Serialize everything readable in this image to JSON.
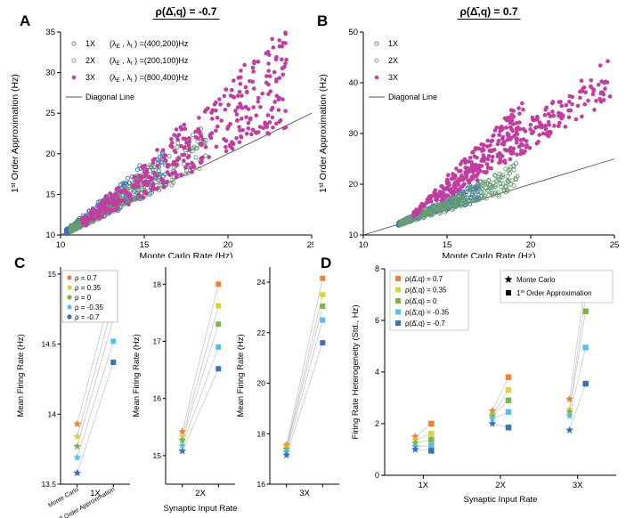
{
  "figure": {
    "panel_labels": {
      "a": "A",
      "b": "B",
      "c": "C",
      "d": "D"
    }
  },
  "chart_data": [
    {
      "id": "A",
      "type": "scatter",
      "title": "ρ(Δ̄,q) = -0.7",
      "xlabel": "Monte Carlo Rate (Hz)",
      "ylabel_segments": [
        {
          "t": "1"
        },
        {
          "t": "st",
          "sup": true
        },
        {
          "t": " Order Approximation (Hz)"
        }
      ],
      "xlim": [
        10,
        25
      ],
      "ylim": [
        10,
        35
      ],
      "xticks": [
        10,
        15,
        20,
        25
      ],
      "yticks": [
        10,
        15,
        20,
        25,
        30,
        35
      ],
      "diagonal": {
        "label": "Diagonal Line",
        "from": [
          10,
          10
        ],
        "to": [
          25,
          25
        ],
        "color": "#555555"
      },
      "legend": [
        {
          "marker": "open-circle",
          "color": "#3b72b5",
          "label": "1X",
          "detail": [
            {
              "t": "(λ"
            },
            {
              "t": "E",
              "sub": true
            },
            {
              "t": " , λ"
            },
            {
              "t": "I",
              "sub": true
            },
            {
              "t": " ) =(400,200)Hz"
            }
          ]
        },
        {
          "marker": "open-circle",
          "color": "#679d72",
          "label": "2X",
          "detail": [
            {
              "t": "(λ"
            },
            {
              "t": "E",
              "sub": true
            },
            {
              "t": " , λ"
            },
            {
              "t": "I",
              "sub": true
            },
            {
              "t": " ) =(200,100)Hz"
            }
          ]
        },
        {
          "marker": "filled-circle",
          "color": "#c23da0",
          "label": "3X",
          "detail": [
            {
              "t": "(λ"
            },
            {
              "t": "E",
              "sub": true
            },
            {
              "t": " , λ"
            },
            {
              "t": "I",
              "sub": true
            },
            {
              "t": " ) =(800,400)Hz"
            }
          ]
        },
        {
          "marker": "line",
          "color": "#555555",
          "label": "Diagonal Line"
        }
      ],
      "series": [
        {
          "name": "1X",
          "marker": "open-circle",
          "color": "#3b72b5",
          "clusters": [
            {
              "seed": 101,
              "count": 330,
              "x0": 10.2,
              "y0": 10.2,
              "xmin": 10.35,
              "xmax": 16.4,
              "xpow": 2.0,
              "kmin": 0.92,
              "kmax": 1.8,
              "jitter": 0.3
            }
          ]
        },
        {
          "name": "2X",
          "marker": "open-circle",
          "color": "#679d72",
          "clusters": [
            {
              "seed": 202,
              "count": 310,
              "x0": 10.4,
              "y0": 10.4,
              "xmin": 10.6,
              "xmax": 18.7,
              "xpow": 1.8,
              "kmin": 0.92,
              "kmax": 1.62,
              "jitter": 0.3
            }
          ]
        },
        {
          "name": "3X",
          "marker": "filled-circle",
          "color": "#c23da0",
          "clusters": [
            {
              "seed": 303,
              "count": 400,
              "x0": 10.8,
              "y0": 10.8,
              "xmin": 11.3,
              "xmax": 23.5,
              "xpow": 1.3,
              "kmin": 0.98,
              "kmax": 1.95,
              "jitter": 0.5
            }
          ]
        }
      ]
    },
    {
      "id": "B",
      "type": "scatter",
      "title": "ρ(Δ̄,q) = 0.7",
      "xlabel": "Monte Carlo Rate (Hz)",
      "ylabel_segments": [
        {
          "t": "1"
        },
        {
          "t": "st",
          "sup": true
        },
        {
          "t": " Order Approximation (Hz)"
        }
      ],
      "xlim": [
        10,
        25
      ],
      "ylim": [
        10,
        50
      ],
      "xticks": [
        10,
        15,
        20,
        25
      ],
      "yticks": [
        10,
        20,
        30,
        40,
        50
      ],
      "diagonal": {
        "label": "Diagonal Line",
        "from": [
          10,
          10
        ],
        "to": [
          25,
          25
        ],
        "color": "#555555"
      },
      "legend": [
        {
          "marker": "open-circle",
          "color": "#3b72b5",
          "label": "1X"
        },
        {
          "marker": "open-circle",
          "color": "#679d72",
          "label": "2X"
        },
        {
          "marker": "filled-circle",
          "color": "#c23da0",
          "label": "3X"
        },
        {
          "marker": "line",
          "color": "#555555",
          "label": "Diagonal Line"
        }
      ],
      "series": [
        {
          "name": "1X",
          "marker": "open-circle",
          "color": "#3b72b5",
          "clusters": [
            {
              "seed": 404,
              "count": 300,
              "x0": 12.0,
              "y0": 12.0,
              "xmin": 12.1,
              "xmax": 17.0,
              "xpow": 1.9,
              "kmin": 0.95,
              "kmax": 1.75,
              "jitter": 0.3
            }
          ]
        },
        {
          "name": "2X",
          "marker": "open-circle",
          "color": "#679d72",
          "clusters": [
            {
              "seed": 505,
              "count": 300,
              "x0": 12.0,
              "y0": 12.0,
              "xmin": 12.2,
              "xmax": 19.3,
              "xpow": 1.7,
              "kmin": 0.95,
              "kmax": 1.7,
              "jitter": 0.35
            }
          ]
        },
        {
          "name": "3X",
          "marker": "filled-circle",
          "color": "#c23da0",
          "clusters": [
            {
              "seed": 606,
              "count": 180,
              "x0": 12.5,
              "y0": 12.5,
              "xmin": 13.0,
              "xmax": 19.6,
              "xpow": 1.2,
              "kmin": 2.6,
              "kmax": 3.45,
              "jitter": 0.5
            },
            {
              "seed": 707,
              "count": 240,
              "x0": 12.3,
              "y0": 12.3,
              "xmin": 14.3,
              "xmax": 24.8,
              "xpow": 1.15,
              "kmin": 1.95,
              "kmax": 2.65,
              "jitter": 0.5
            }
          ]
        }
      ]
    },
    {
      "id": "C",
      "type": "line",
      "ylabel": "Mean Firing Rate (Hz)",
      "xlabel_shared": "Synaptic Input Rate",
      "categories": [
        {
          "label": "Monte Carlo",
          "segments": [
            {
              "t": "Monte Carlo"
            }
          ]
        },
        {
          "label": "1st Order Approximation",
          "segments": [
            {
              "t": "1"
            },
            {
              "t": "st",
              "sup": true
            },
            {
              "t": " Order Approximation"
            }
          ]
        }
      ],
      "rho_legend": [
        {
          "label": "ρ = 0.7",
          "color": "#f08032"
        },
        {
          "label": "ρ = 0.35",
          "color": "#ddd23f"
        },
        {
          "label": "ρ = 0",
          "color": "#7ab648"
        },
        {
          "label": "ρ = -0.35",
          "color": "#55c0e8"
        },
        {
          "label": "ρ = -0.7",
          "color": "#3b72b5"
        }
      ],
      "panels": [
        {
          "xlabel": "1X",
          "ylim": [
            13.5,
            15.05
          ],
          "yticks": [
            13.5,
            14,
            14.5,
            15
          ],
          "mc": [
            13.93,
            13.84,
            13.77,
            13.69,
            13.58
          ],
          "approx": [
            14.93,
            14.8,
            14.68,
            14.52,
            14.37
          ],
          "cat_labels": true,
          "show_legend": true,
          "ylabel_dx": 42
        },
        {
          "xlabel": "2X",
          "ylim": [
            14.5,
            18.3
          ],
          "yticks": [
            15,
            16,
            17,
            18
          ],
          "mc": [
            15.42,
            15.33,
            15.27,
            15.18,
            15.08
          ],
          "approx": [
            18.0,
            17.62,
            17.3,
            16.9,
            16.52
          ],
          "ylabel_dx": 30
        },
        {
          "xlabel": "3X",
          "ylim": [
            16,
            24.6
          ],
          "yticks": [
            16,
            18,
            20,
            22,
            24
          ],
          "mc": [
            17.55,
            17.45,
            17.38,
            17.28,
            17.15
          ],
          "approx": [
            24.15,
            23.5,
            23.05,
            22.5,
            21.6
          ],
          "ylabel_dx": 30
        }
      ]
    },
    {
      "id": "D",
      "type": "scatter",
      "ylabel": "Firing Rate Heterogeneity (Std., Hz)",
      "xlabel": "Synaptic Input Rate",
      "categories": [
        "1X",
        "2X",
        "3X"
      ],
      "ylim": [
        0,
        8
      ],
      "yticks": [
        0,
        2,
        4,
        6,
        8
      ],
      "rho_legend": [
        {
          "label": "ρ(Δ̄,q) = 0.7",
          "color": "#f08032"
        },
        {
          "label": "ρ(Δ̄,q) = 0.35",
          "color": "#ddd23f"
        },
        {
          "label": "ρ(Δ̄,q) = 0",
          "color": "#7ab648"
        },
        {
          "label": "ρ(Δ̄,q) = -0.35",
          "color": "#55c0e8"
        },
        {
          "label": "ρ(Δ̄,q) = -0.7",
          "color": "#3b72b5"
        }
      ],
      "marker_legend": [
        {
          "marker": "star",
          "segments": [
            {
              "t": "Monte Carlo"
            }
          ]
        },
        {
          "marker": "square",
          "segments": [
            {
              "t": "1"
            },
            {
              "t": "st",
              "sup": true
            },
            {
              "t": " Order Approximation"
            }
          ]
        }
      ],
      "monte_carlo": [
        [
          1.5,
          1.35,
          1.25,
          1.12,
          1.0
        ],
        [
          2.5,
          2.35,
          2.3,
          2.2,
          2.0
        ],
        [
          2.95,
          2.55,
          2.45,
          2.3,
          1.75
        ]
      ],
      "first_order": [
        [
          2.0,
          1.62,
          1.38,
          1.15,
          0.95
        ],
        [
          3.8,
          3.3,
          2.9,
          2.45,
          1.85
        ],
        [
          7.6,
          6.95,
          6.35,
          4.95,
          3.55
        ]
      ]
    }
  ]
}
